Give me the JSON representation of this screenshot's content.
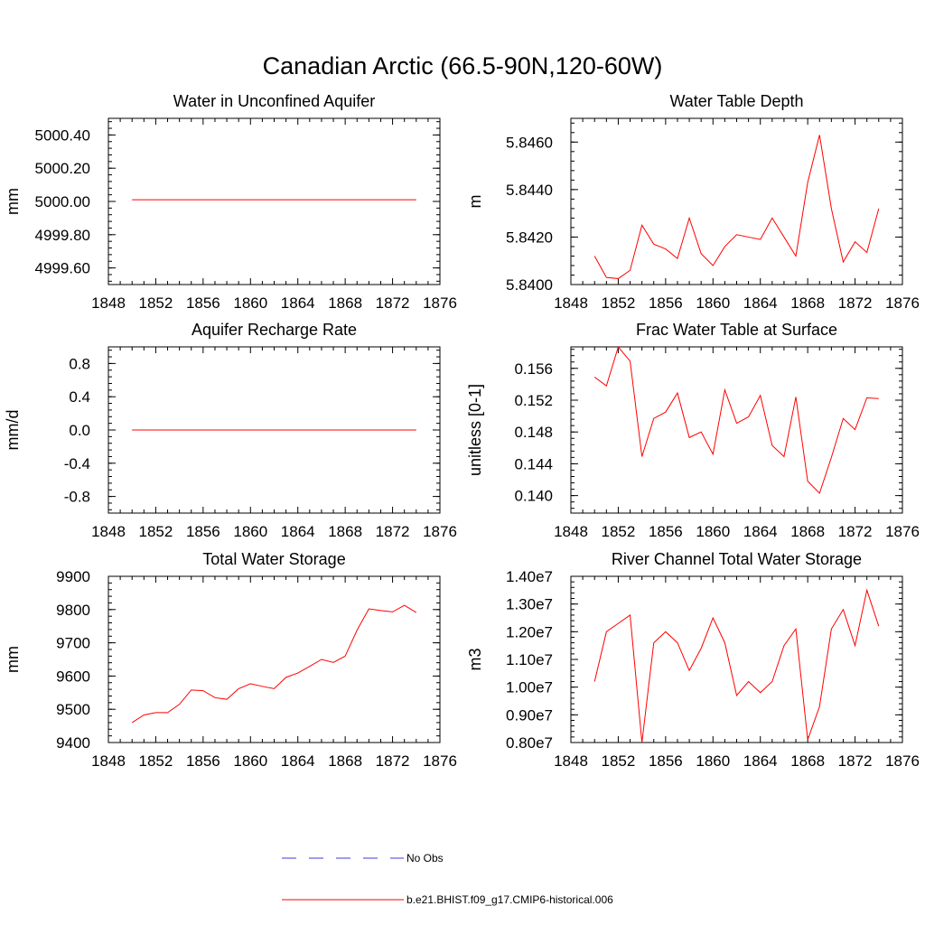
{
  "figure": {
    "title": "Canadian Arctic (66.5-90N,120-60W)",
    "line_color": "#ff0000",
    "obs_color": "#3c3ccc"
  },
  "legend": {
    "obs_label": "No Obs",
    "model_label": "b.e21.BHIST.f09_g17.CMIP6-historical.006"
  },
  "chart_data": [
    {
      "type": "line",
      "title": "Water in Unconfined Aquifer",
      "ylabel": "mm",
      "xlim": [
        1848,
        1876
      ],
      "ylim": [
        4999.5,
        5000.5
      ],
      "xticks": [
        "1848",
        "1852",
        "1856",
        "1860",
        "1864",
        "1868",
        "1872",
        "1876"
      ],
      "yticks": [
        4999.6,
        4999.8,
        5000.0,
        5000.2,
        5000.4
      ],
      "ytick_labels": [
        "4999.60",
        "4999.80",
        "5000.00",
        "5000.20",
        "5000.40"
      ],
      "x": [
        1850,
        1851,
        1852,
        1853,
        1854,
        1855,
        1856,
        1857,
        1858,
        1859,
        1860,
        1861,
        1862,
        1863,
        1864,
        1865,
        1866,
        1867,
        1868,
        1869,
        1870,
        1871,
        1872,
        1873,
        1874
      ],
      "series": [
        {
          "values": [
            5000.01,
            5000.01,
            5000.01,
            5000.01,
            5000.01,
            5000.01,
            5000.01,
            5000.01,
            5000.01,
            5000.01,
            5000.01,
            5000.01,
            5000.01,
            5000.01,
            5000.01,
            5000.01,
            5000.01,
            5000.01,
            5000.01,
            5000.01,
            5000.01,
            5000.01,
            5000.01,
            5000.01,
            5000.01
          ]
        }
      ]
    },
    {
      "type": "line",
      "title": "Water Table Depth",
      "ylabel": "m",
      "xlim": [
        1848,
        1876
      ],
      "ylim": [
        5.84,
        5.847
      ],
      "xticks": [
        "1848",
        "1852",
        "1856",
        "1860",
        "1864",
        "1868",
        "1872",
        "1876"
      ],
      "yticks": [
        5.84,
        5.842,
        5.844,
        5.846
      ],
      "ytick_labels": [
        "5.8400",
        "5.8420",
        "5.8440",
        "5.8460"
      ],
      "x": [
        1850,
        1851,
        1852,
        1853,
        1854,
        1855,
        1856,
        1857,
        1858,
        1859,
        1860,
        1861,
        1862,
        1863,
        1864,
        1865,
        1866,
        1867,
        1868,
        1869,
        1870,
        1871,
        1872,
        1873,
        1874
      ],
      "series": [
        {
          "values": [
            5.8412,
            5.8403,
            5.84025,
            5.8406,
            5.8425,
            5.8417,
            5.8415,
            5.8411,
            5.8428,
            5.8413,
            5.8408,
            5.8416,
            5.8421,
            5.842,
            5.8419,
            5.8428,
            5.842,
            5.8412,
            5.8443,
            5.8463,
            5.8432,
            5.84095,
            5.8418,
            5.84135,
            5.8432
          ]
        }
      ]
    },
    {
      "type": "line",
      "title": "Aquifer Recharge Rate",
      "ylabel": "mm/d",
      "xlim": [
        1848,
        1876
      ],
      "ylim": [
        -1.0,
        1.0
      ],
      "xticks": [
        "1848",
        "1852",
        "1856",
        "1860",
        "1864",
        "1868",
        "1872",
        "1876"
      ],
      "yticks": [
        -0.8,
        -0.4,
        0.0,
        0.4,
        0.8
      ],
      "ytick_labels": [
        "-0.8",
        "-0.4",
        "0.0",
        "0.4",
        "0.8"
      ],
      "x": [
        1850,
        1851,
        1852,
        1853,
        1854,
        1855,
        1856,
        1857,
        1858,
        1859,
        1860,
        1861,
        1862,
        1863,
        1864,
        1865,
        1866,
        1867,
        1868,
        1869,
        1870,
        1871,
        1872,
        1873,
        1874
      ],
      "series": [
        {
          "values": [
            0,
            0,
            0,
            0,
            0,
            0,
            0,
            0,
            0,
            0,
            0,
            0,
            0,
            0,
            0,
            0,
            0,
            0,
            0,
            0,
            0,
            0,
            0,
            0,
            0
          ]
        }
      ]
    },
    {
      "type": "line",
      "title": "Frac Water Table at Surface",
      "ylabel": "unitless [0-1]",
      "xlim": [
        1848,
        1876
      ],
      "ylim": [
        0.1378,
        0.1587
      ],
      "xticks": [
        "1848",
        "1852",
        "1856",
        "1860",
        "1864",
        "1868",
        "1872",
        "1876"
      ],
      "yticks": [
        0.14,
        0.144,
        0.148,
        0.152,
        0.156
      ],
      "ytick_labels": [
        "0.140",
        "0.144",
        "0.148",
        "0.152",
        "0.156"
      ],
      "x": [
        1850,
        1851,
        1852,
        1853,
        1854,
        1855,
        1856,
        1857,
        1858,
        1859,
        1860,
        1861,
        1862,
        1863,
        1864,
        1865,
        1866,
        1867,
        1868,
        1869,
        1870,
        1871,
        1872,
        1873,
        1874
      ],
      "series": [
        {
          "values": [
            0.1549,
            0.1538,
            0.1587,
            0.1569,
            0.1449,
            0.1497,
            0.1505,
            0.1529,
            0.1473,
            0.148,
            0.1452,
            0.1533,
            0.1491,
            0.1499,
            0.1526,
            0.1463,
            0.1449,
            0.1524,
            0.1418,
            0.1403,
            0.1448,
            0.1497,
            0.1483,
            0.1523,
            0.1522
          ]
        }
      ]
    },
    {
      "type": "line",
      "title": "Total Water Storage",
      "ylabel": "mm",
      "xlim": [
        1848,
        1876
      ],
      "ylim": [
        9400,
        9900
      ],
      "xticks": [
        "1848",
        "1852",
        "1856",
        "1860",
        "1864",
        "1868",
        "1872",
        "1876"
      ],
      "yticks": [
        9400,
        9500,
        9600,
        9700,
        9800,
        9900
      ],
      "ytick_labels": [
        "9400",
        "9500",
        "9600",
        "9700",
        "9800",
        "9900"
      ],
      "x": [
        1850,
        1851,
        1852,
        1853,
        1854,
        1855,
        1856,
        1857,
        1858,
        1859,
        1860,
        1861,
        1862,
        1863,
        1864,
        1865,
        1866,
        1867,
        1868,
        1869,
        1870,
        1871,
        1872,
        1873,
        1874
      ],
      "series": [
        {
          "values": [
            9460,
            9483,
            9490,
            9490,
            9515,
            9558,
            9556,
            9535,
            9530,
            9562,
            9577,
            9569,
            9562,
            9596,
            9609,
            9629,
            9650,
            9641,
            9660,
            9738,
            9802,
            9797,
            9793,
            9813,
            9791
          ]
        }
      ]
    },
    {
      "type": "line",
      "title": "River Channel Total Water Storage",
      "ylabel": "m3",
      "xlim": [
        1848,
        1876
      ],
      "ylim": [
        8000000.0,
        14000000.0
      ],
      "xticks": [
        "1848",
        "1852",
        "1856",
        "1860",
        "1864",
        "1868",
        "1872",
        "1876"
      ],
      "yticks": [
        8000000.0,
        9000000.0,
        10000000.0,
        11000000.0,
        12000000.0,
        13000000.0,
        14000000.0
      ],
      "ytick_labels": [
        "0.80e7",
        "0.90e7",
        "1.00e7",
        "1.10e7",
        "1.20e7",
        "1.30e7",
        "1.40e7"
      ],
      "x": [
        1850,
        1851,
        1852,
        1853,
        1854,
        1855,
        1856,
        1857,
        1858,
        1859,
        1860,
        1861,
        1862,
        1863,
        1864,
        1865,
        1866,
        1867,
        1868,
        1869,
        1870,
        1871,
        1872,
        1873,
        1874
      ],
      "series": [
        {
          "values": [
            10200000.0,
            12000000.0,
            12300000.0,
            12600000.0,
            8000000.0,
            11600000.0,
            12000000.0,
            11600000.0,
            10600000.0,
            11400000.0,
            12500000.0,
            11600000.0,
            9700000.0,
            10200000.0,
            9800000.0,
            10200000.0,
            11500000.0,
            12100000.0,
            8100000.0,
            9300000.0,
            12100000.0,
            12800000.0,
            11500000.0,
            13500000.0,
            12200000.0
          ]
        }
      ]
    }
  ]
}
